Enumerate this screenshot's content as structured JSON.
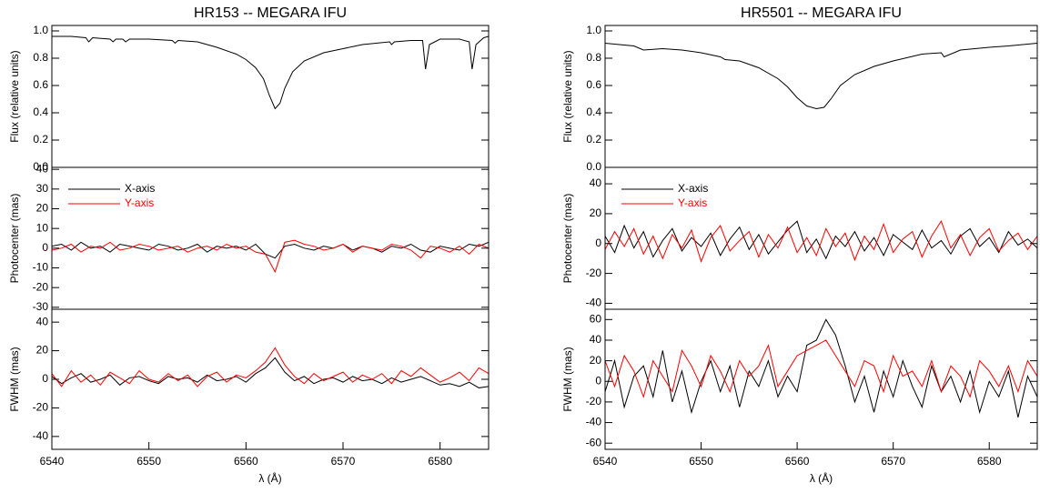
{
  "chart_data": [
    {
      "type": "line",
      "title": "HR153 -- MEGARA IFU",
      "y_label": "Flux (relative units)",
      "xlim": [
        6540,
        6585
      ],
      "ylim": [
        0,
        1.04
      ],
      "yticks": [
        {
          "value": 0,
          "label": "0.0"
        },
        0.2,
        0.4,
        0.6,
        0.8,
        {
          "value": 1,
          "label": "1.0"
        }
      ],
      "x": [
        6540,
        6542,
        6543.5,
        6543.8,
        6544.2,
        6546,
        6546.3,
        6546.6,
        6547.3,
        6547.6,
        6548,
        6550,
        6552.4,
        6552.7,
        6553,
        6555,
        6557,
        6559,
        6560,
        6561,
        6561.8,
        6562.4,
        6563,
        6563.5,
        6564,
        6564.8,
        6566,
        6568,
        6570,
        6572,
        6574.8,
        6575,
        6575.3,
        6577,
        6578.2,
        6578.5,
        6578.9,
        6580,
        6582,
        6583,
        6583.3,
        6583.7,
        6584.5,
        6585
      ],
      "series": [
        {
          "color": "#000000",
          "values": [
            0.96,
            0.96,
            0.95,
            0.92,
            0.95,
            0.94,
            0.92,
            0.94,
            0.94,
            0.92,
            0.94,
            0.94,
            0.93,
            0.91,
            0.93,
            0.92,
            0.88,
            0.83,
            0.79,
            0.73,
            0.65,
            0.53,
            0.43,
            0.47,
            0.58,
            0.7,
            0.78,
            0.84,
            0.87,
            0.9,
            0.92,
            0.9,
            0.92,
            0.93,
            0.93,
            0.72,
            0.9,
            0.94,
            0.94,
            0.92,
            0.72,
            0.9,
            0.95,
            0.96
          ]
        }
      ]
    },
    {
      "type": "line",
      "y_label": "Photocenter (mas)",
      "legend": "upper left",
      "xlim": [
        6540,
        6585
      ],
      "ylim": [
        -31,
        41
      ],
      "yticks": [
        -30,
        -20,
        -10,
        0,
        10,
        20,
        30,
        40
      ],
      "x": [
        6540,
        6541,
        6542,
        6543,
        6544,
        6545,
        6546,
        6547,
        6548,
        6549,
        6550,
        6551,
        6552,
        6553,
        6554,
        6555,
        6556,
        6557,
        6558,
        6559,
        6560,
        6561,
        6562,
        6563,
        6564,
        6565,
        6566,
        6567,
        6568,
        6569,
        6570,
        6571,
        6572,
        6573,
        6574,
        6575,
        6576,
        6577,
        6578,
        6579,
        6580,
        6581,
        6582,
        6583,
        6584,
        6585
      ],
      "series": [
        {
          "name": "X-axis",
          "color": "#000000",
          "values": [
            1,
            2,
            -1,
            3,
            0,
            1,
            -2,
            2,
            1,
            0,
            -1,
            2,
            1,
            -1,
            0,
            2,
            -2,
            1,
            0,
            1,
            -1,
            2,
            -3,
            -5,
            1,
            2,
            0,
            -1,
            1,
            0,
            2,
            -1,
            1,
            0,
            -2,
            1,
            0,
            2,
            -1,
            -2,
            1,
            0,
            -1,
            2,
            1,
            3
          ]
        },
        {
          "name": "Y-axis",
          "color": "#ff0000",
          "values": [
            -1,
            0,
            2,
            -2,
            1,
            0,
            3,
            -1,
            0,
            2,
            1,
            -1,
            0,
            1,
            -2,
            0,
            1,
            -1,
            2,
            0,
            1,
            -2,
            -3,
            -12,
            3,
            4,
            2,
            1,
            -1,
            0,
            2,
            -2,
            1,
            0,
            -1,
            2,
            1,
            -1,
            -5,
            1,
            0,
            -2,
            1,
            -3,
            2,
            0
          ]
        }
      ]
    },
    {
      "type": "line",
      "y_label": "FWHM (mas)",
      "x_label": "λ (Å)",
      "xlim": [
        6540,
        6585
      ],
      "ylim": [
        -49,
        49
      ],
      "yticks": [
        -40,
        -20,
        0,
        20,
        40
      ],
      "xticks": [
        6540,
        6550,
        6560,
        6570,
        6580
      ],
      "x": [
        6540,
        6541,
        6542,
        6543,
        6544,
        6545,
        6546,
        6547,
        6548,
        6549,
        6550,
        6551,
        6552,
        6553,
        6554,
        6555,
        6556,
        6557,
        6558,
        6559,
        6560,
        6561,
        6562,
        6563,
        6564,
        6565,
        6566,
        6567,
        6568,
        6569,
        6570,
        6571,
        6572,
        6573,
        6574,
        6575,
        6576,
        6577,
        6578,
        6579,
        6580,
        6581,
        6582,
        6583,
        6584,
        6585
      ],
      "series": [
        {
          "color": "#000000",
          "values": [
            2,
            -3,
            1,
            4,
            -2,
            0,
            3,
            -4,
            1,
            2,
            -1,
            -3,
            2,
            0,
            1,
            -2,
            3,
            -1,
            0,
            2,
            -2,
            4,
            8,
            15,
            5,
            -1,
            2,
            -3,
            0,
            1,
            -2,
            2,
            -1,
            0,
            -3,
            1,
            -2,
            0,
            2,
            -1,
            -4,
            -3,
            -5,
            -2,
            -6,
            -5
          ]
        },
        {
          "color": "#ff0000",
          "values": [
            4,
            -5,
            6,
            -2,
            3,
            -4,
            5,
            1,
            -3,
            6,
            0,
            -2,
            4,
            -1,
            3,
            -5,
            2,
            5,
            -2,
            3,
            1,
            6,
            12,
            22,
            10,
            2,
            -3,
            4,
            -1,
            2,
            5,
            -2,
            3,
            0,
            4,
            -3,
            6,
            2,
            8,
            3,
            -2,
            1,
            5,
            -1,
            8,
            4
          ]
        }
      ]
    },
    {
      "type": "line",
      "title": "HR5501 -- MEGARA IFU",
      "y_label": "Flux (relative units)",
      "xlim": [
        6540,
        6585
      ],
      "ylim": [
        0,
        1.04
      ],
      "yticks": [
        {
          "value": 0,
          "label": "0.0"
        },
        0.2,
        0.4,
        0.6,
        0.8,
        {
          "value": 1,
          "label": "1.0"
        }
      ],
      "x": [
        6540,
        6543,
        6544,
        6546,
        6548,
        6550,
        6552,
        6552.5,
        6554,
        6556,
        6558,
        6559,
        6560,
        6561,
        6562,
        6562.8,
        6563.5,
        6564.5,
        6566,
        6568,
        6570,
        6573,
        6575,
        6575.3,
        6577,
        6580,
        6582,
        6585
      ],
      "series": [
        {
          "color": "#000000",
          "values": [
            0.91,
            0.89,
            0.86,
            0.87,
            0.86,
            0.84,
            0.81,
            0.79,
            0.78,
            0.73,
            0.65,
            0.59,
            0.51,
            0.45,
            0.43,
            0.44,
            0.5,
            0.6,
            0.68,
            0.74,
            0.78,
            0.83,
            0.84,
            0.81,
            0.86,
            0.88,
            0.89,
            0.91
          ]
        }
      ]
    },
    {
      "type": "line",
      "y_label": "Photocenter (mas)",
      "legend": "upper left",
      "xlim": [
        6540,
        6585
      ],
      "ylim": [
        -44,
        51
      ],
      "yticks": [
        -40,
        -20,
        0,
        20,
        40
      ],
      "x": [
        6540,
        6541,
        6542,
        6543,
        6544,
        6545,
        6546,
        6547,
        6548,
        6549,
        6550,
        6551,
        6552,
        6553,
        6554,
        6555,
        6556,
        6557,
        6558,
        6559,
        6560,
        6561,
        6562,
        6563,
        6564,
        6565,
        6566,
        6567,
        6568,
        6569,
        6570,
        6571,
        6572,
        6573,
        6574,
        6575,
        6576,
        6577,
        6578,
        6579,
        6580,
        6581,
        6582,
        6583,
        6584,
        6585
      ],
      "series": [
        {
          "name": "X-axis",
          "color": "#000000",
          "values": [
            5,
            -6,
            12,
            -3,
            8,
            -9,
            2,
            10,
            -5,
            4,
            -2,
            7,
            -8,
            3,
            11,
            -4,
            6,
            -7,
            1,
            9,
            15,
            -6,
            3,
            -10,
            5,
            -2,
            8,
            -5,
            4,
            -8,
            6,
            1,
            -4,
            9,
            -3,
            2,
            -7,
            5,
            10,
            -2,
            4,
            -6,
            8,
            -1,
            3,
            -3
          ]
        },
        {
          "name": "Y-axis",
          "color": "#ff0000",
          "values": [
            -4,
            8,
            -2,
            10,
            -7,
            5,
            -10,
            6,
            -3,
            9,
            -12,
            4,
            12,
            -5,
            2,
            8,
            -9,
            6,
            -3,
            11,
            -6,
            4,
            -8,
            10,
            -2,
            7,
            -11,
            5,
            -4,
            13,
            -6,
            3,
            8,
            -9,
            5,
            15,
            -3,
            6,
            -8,
            4,
            10,
            -5,
            2,
            7,
            -4,
            5
          ]
        }
      ]
    },
    {
      "type": "line",
      "y_label": "FWHM (mas)",
      "x_label": "λ (Å)",
      "xlim": [
        6540,
        6585
      ],
      "ylim": [
        -66,
        70
      ],
      "yticks": [
        -60,
        -40,
        -20,
        0,
        20,
        40,
        60
      ],
      "xticks": [
        6540,
        6550,
        6560,
        6570,
        6580
      ],
      "x": [
        6540,
        6541,
        6542,
        6543,
        6544,
        6545,
        6546,
        6547,
        6548,
        6549,
        6550,
        6551,
        6552,
        6553,
        6554,
        6555,
        6556,
        6557,
        6558,
        6559,
        6560,
        6561,
        6562,
        6563,
        6564,
        6565,
        6566,
        6567,
        6568,
        6569,
        6570,
        6571,
        6572,
        6573,
        6574,
        6575,
        6576,
        6577,
        6578,
        6579,
        6580,
        6581,
        6582,
        6583,
        6584,
        6585
      ],
      "series": [
        {
          "color": "#000000",
          "values": [
            -10,
            20,
            -25,
            5,
            15,
            -15,
            30,
            -20,
            10,
            -30,
            0,
            20,
            -10,
            15,
            -25,
            10,
            -5,
            20,
            -15,
            5,
            -10,
            35,
            40,
            60,
            45,
            15,
            -20,
            5,
            -30,
            10,
            -15,
            20,
            -5,
            -25,
            15,
            -10,
            5,
            -20,
            10,
            -30,
            0,
            -15,
            10,
            -35,
            5,
            -15
          ]
        },
        {
          "color": "#ff0000",
          "values": [
            20,
            -5,
            25,
            10,
            -15,
            20,
            5,
            -10,
            30,
            15,
            -5,
            25,
            10,
            -10,
            20,
            5,
            15,
            35,
            -5,
            10,
            25,
            30,
            35,
            40,
            25,
            10,
            -5,
            20,
            15,
            -10,
            25,
            5,
            10,
            -5,
            20,
            -10,
            15,
            5,
            -15,
            20,
            10,
            -5,
            15,
            -10,
            20,
            5
          ]
        }
      ]
    }
  ]
}
